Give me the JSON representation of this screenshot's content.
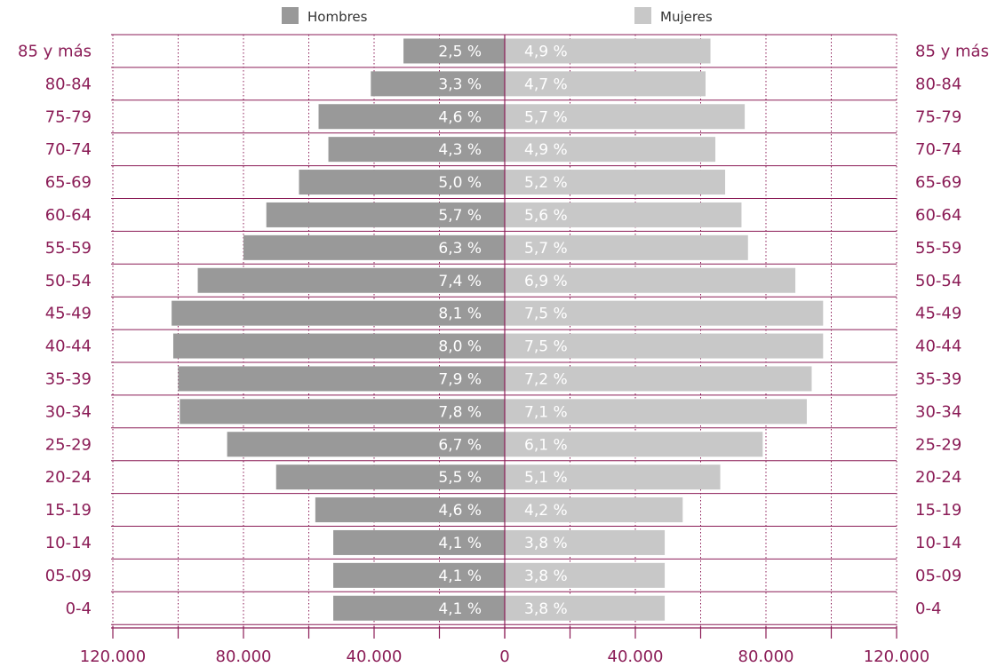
{
  "chart_data": {
    "type": "bar",
    "orientation": "horizontal",
    "layout": "population-pyramid",
    "categories": [
      "85 y más",
      "80-84",
      "75-79",
      "70-74",
      "65-69",
      "60-64",
      "55-59",
      "50-54",
      "45-49",
      "40-44",
      "35-39",
      "30-34",
      "25-29",
      "20-24",
      "15-19",
      "10-14",
      "05-09",
      "0-4"
    ],
    "series": [
      {
        "name": "Hombres",
        "color": "#999999",
        "values": [
          31000,
          41000,
          57000,
          54000,
          63000,
          73000,
          80000,
          94000,
          102000,
          101500,
          100000,
          99500,
          85000,
          70000,
          58000,
          52500,
          52500,
          52500
        ],
        "labels": [
          "2,5 %",
          "3,3 %",
          "4,6 %",
          "4,3 %",
          "5,0 %",
          "5,7 %",
          "6,3 %",
          "7,4 %",
          "8,1 %",
          "8,0 %",
          "7,9 %",
          "7,8 %",
          "6,7 %",
          "5,5 %",
          "4,6 %",
          "4,1 %",
          "4,1 %",
          "4,1 %"
        ]
      },
      {
        "name": "Mujeres",
        "color": "#c8c8c8",
        "values": [
          63000,
          61500,
          73500,
          64500,
          67500,
          72500,
          74500,
          89000,
          97500,
          97500,
          94000,
          92500,
          79000,
          66000,
          54500,
          49000,
          49000,
          49000
        ],
        "labels": [
          "4,9 %",
          "4,7 %",
          "5,7 %",
          "4,9 %",
          "5,2 %",
          "5,6 %",
          "5,7 %",
          "6,9 %",
          "7,5 %",
          "7,5 %",
          "7,2 %",
          "7,1 %",
          "6,1 %",
          "5,1 %",
          "4,2 %",
          "3,8 %",
          "3,8 %",
          "3,8 %"
        ]
      }
    ],
    "x_ticks": [
      {
        "value": -120000,
        "label": "120.000"
      },
      {
        "value": -80000,
        "label": "80.000"
      },
      {
        "value": -40000,
        "label": "40.000"
      },
      {
        "value": 0,
        "label": "0"
      },
      {
        "value": 40000,
        "label": "40.000"
      },
      {
        "value": 80000,
        "label": "80.000"
      },
      {
        "value": 120000,
        "label": "120.000"
      }
    ],
    "xlim": [
      -120000,
      120000
    ],
    "gridline_step": 20000,
    "grid": true,
    "legend_position": "top-center",
    "xlabel": "",
    "ylabel": "",
    "title": ""
  },
  "colors": {
    "accent": "#8b1d57",
    "men_bar": "#999999",
    "women_bar": "#c8c8c8",
    "grid": "#8b1d57"
  }
}
